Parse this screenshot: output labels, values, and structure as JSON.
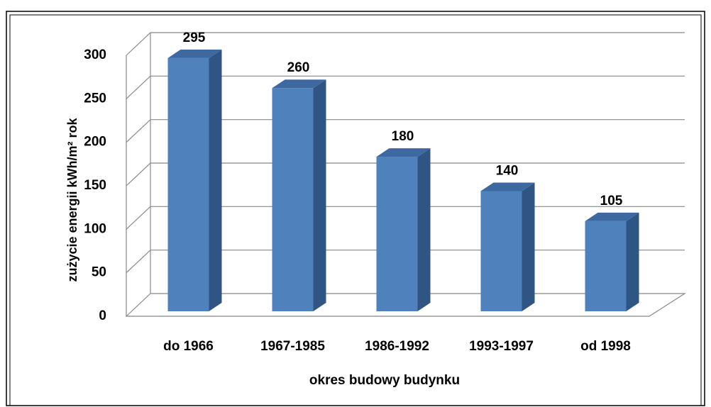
{
  "chart_data": {
    "type": "bar3d",
    "categories": [
      "do 1966",
      "1967-1985",
      "1986-1992",
      "1993-1997",
      "od 1998"
    ],
    "values": [
      295,
      260,
      180,
      140,
      105
    ],
    "color": "#4f81bd",
    "ylim": [
      0,
      300
    ],
    "yticks": [
      0,
      50,
      100,
      150,
      200,
      250,
      300
    ],
    "grid": true,
    "xlabel": "okres budowy budynku",
    "ylabel": "zużycie energii kWh/m² rok"
  }
}
